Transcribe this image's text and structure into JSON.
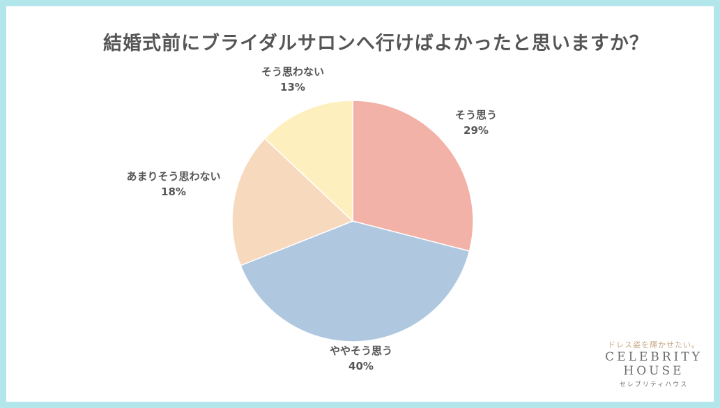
{
  "chart_data": {
    "type": "pie",
    "title": "結婚式前にブライダルサロンへ行けばよかったと思いますか？",
    "slices": [
      {
        "label": "そう思う",
        "value": 29,
        "value_label": "29%",
        "color": "#f2b2a8"
      },
      {
        "label": "ややそう思う",
        "value": 40,
        "value_label": "40%",
        "color": "#afc8e0"
      },
      {
        "label": "あまりそう思わない",
        "value": 18,
        "value_label": "18%",
        "color": "#f7d9bd"
      },
      {
        "label": "そう思わない",
        "value": 13,
        "value_label": "13%",
        "color": "#fef0be"
      }
    ],
    "start": "12 o'clock",
    "direction": "clockwise",
    "legend": "none"
  },
  "logo": {
    "tagline": "ドレス姿を輝かせたい。",
    "line1": "CELEBRITY",
    "line2": "HOUSE",
    "sub": "セレブリティハウス"
  },
  "colors": {
    "border": "#b3e6ea",
    "text": "#555555"
  }
}
